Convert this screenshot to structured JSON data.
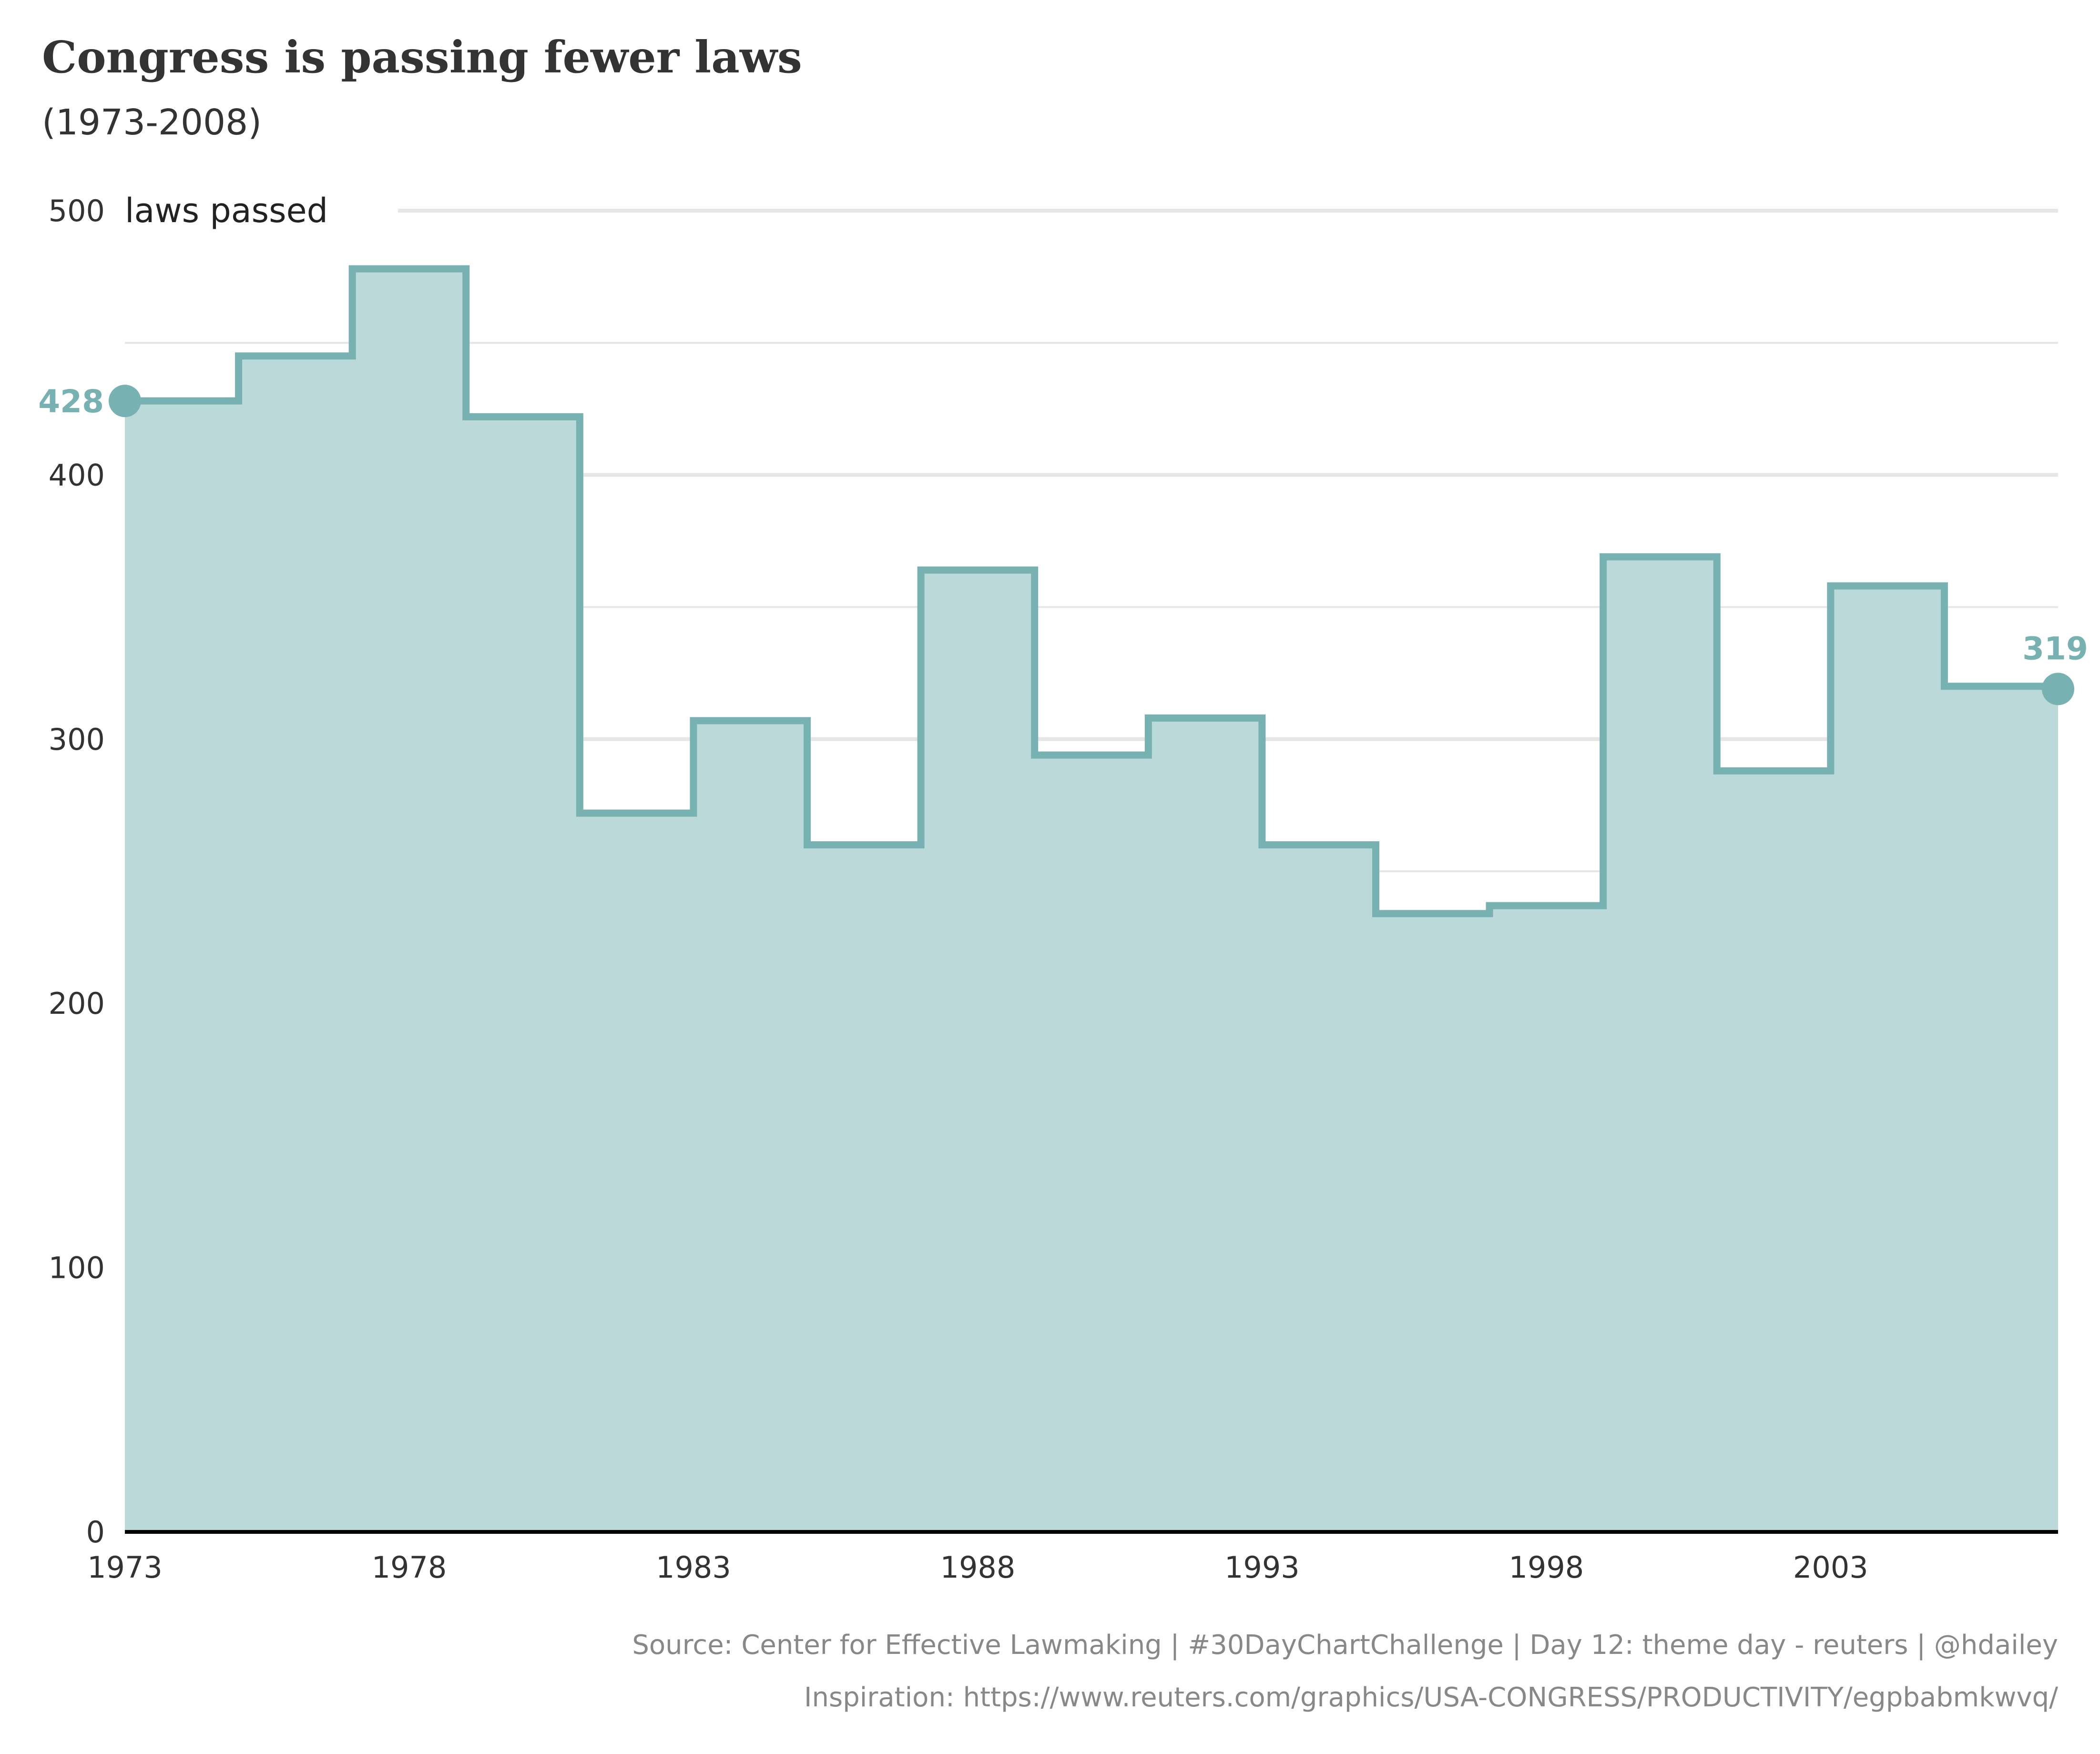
{
  "title": "Congress is passing fewer laws",
  "subtitle": "(1973-2008)",
  "caption_source": "Source: Center for Effective Lawmaking | #30DayChartChallenge | Day 12: theme day - reuters | @hdailey",
  "caption_inspiration": "Inspiration: https://www.reuters.com/graphics/USA-CONGRESS/PRODUCTIVITY/egpbabmkwvq/",
  "colors": {
    "line": "#78b1b1",
    "fill": "#bbd9d9",
    "grid": "#e6e6e6",
    "baseline": "#000000",
    "text": "#333333"
  },
  "chart_data": {
    "type": "area",
    "step": true,
    "ylabel": "laws passed",
    "xlim": [
      1973,
      2007
    ],
    "ylim": [
      0,
      500
    ],
    "x_ticks": [
      1973,
      1978,
      1983,
      1988,
      1993,
      1998,
      2003
    ],
    "y_ticks": [
      0,
      100,
      200,
      300,
      400,
      500
    ],
    "grid": true,
    "x": [
      1973,
      1975,
      1977,
      1979,
      1981,
      1983,
      1985,
      1987,
      1989,
      1991,
      1993,
      1995,
      1997,
      1999,
      2001,
      2003,
      2005
    ],
    "values": [
      428,
      445,
      478,
      422,
      272,
      307,
      260,
      364,
      294,
      308,
      260,
      234,
      237,
      369,
      288,
      358,
      320
    ],
    "end_x": 2007,
    "end_value": 319,
    "start_label": "428",
    "end_label": "319"
  }
}
